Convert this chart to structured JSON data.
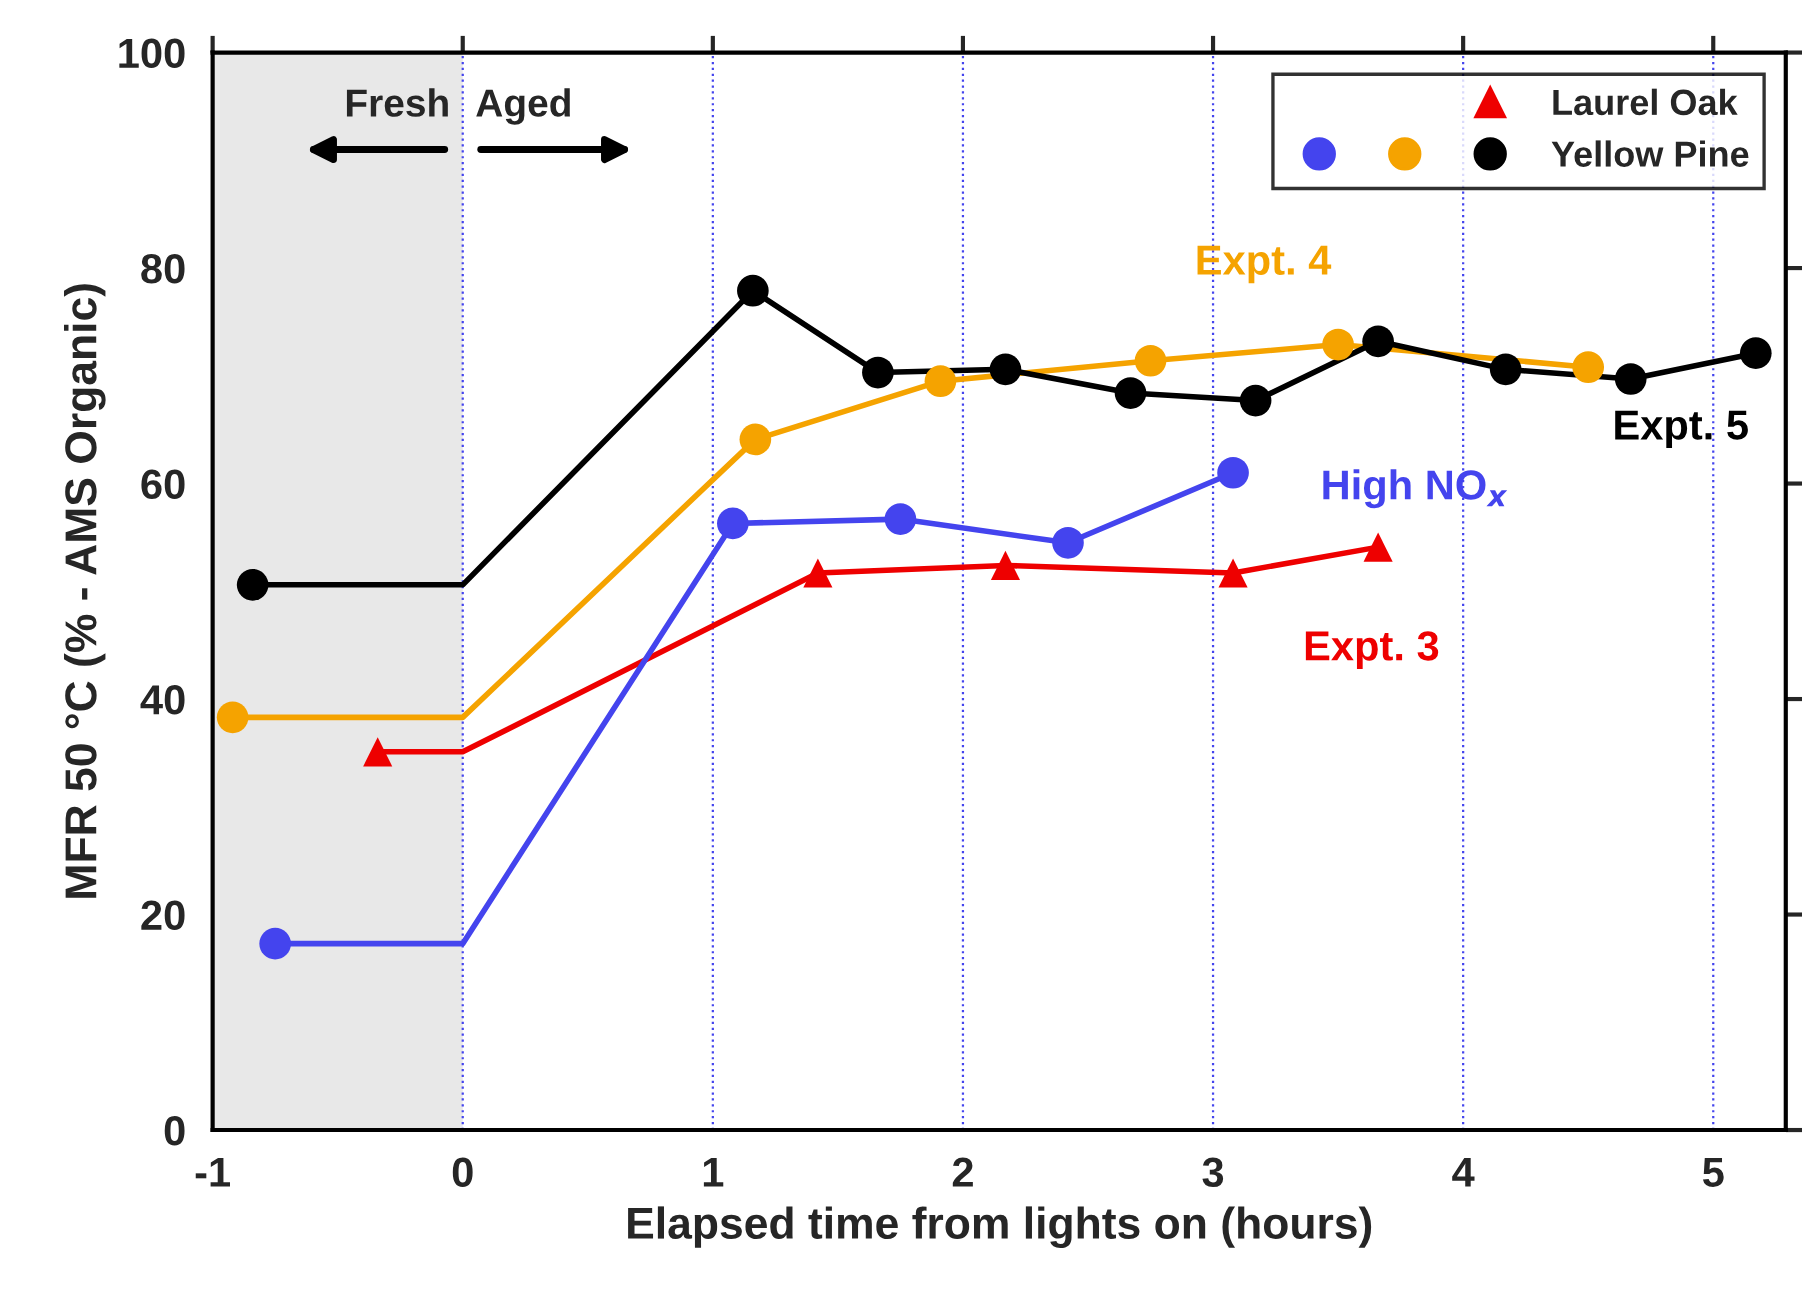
{
  "chart_data": {
    "type": "line",
    "xlabel": "Elapsed time from lights on (hours)",
    "ylabel": "MFR 50 °C (% - AMS Organic)",
    "xlim": [
      -1,
      5.29
    ],
    "xticks": [
      -1,
      0,
      1,
      2,
      3,
      4,
      5
    ],
    "ylim": [
      0,
      100
    ],
    "yticks": [
      0,
      20,
      40,
      60,
      80,
      100
    ],
    "grid": "x",
    "legend": "top right",
    "bands": [
      {
        "axis": "x",
        "from": -1,
        "to": 0,
        "color": "#e8e8e8"
      }
    ],
    "annotations": [
      "Fresh",
      "Aged",
      {
        "text": "Expt. 3",
        "x": 3.66,
        "y": 54.1
      },
      {
        "text": "High NO$_{x}$",
        "x": 3.08,
        "y": 61.0
      },
      {
        "text": "Expt. 4",
        "x": 3.5,
        "y": 72.9
      },
      {
        "text": "Expt. 5",
        "x": 5.17,
        "y": 72.1
      }
    ],
    "series": [
      {
        "marker": "none",
        "color": "#ee0000",
        "x": [
          -0.34,
          0,
          1.42,
          2.17,
          3.08,
          3.66
        ],
        "values": [
          35.1,
          35.1,
          51.7,
          52.4,
          51.7,
          54.1
        ]
      },
      {
        "marker": "none",
        "color": "#4444ee",
        "x": [
          -0.75,
          0,
          1.08,
          1.75,
          2.42,
          3.08
        ],
        "values": [
          17.3,
          17.3,
          56.3,
          56.7,
          54.5,
          61.0
        ]
      },
      {
        "marker": "none",
        "color": "#f5a300",
        "x": [
          -0.92,
          0,
          1.17,
          1.91,
          2.75,
          3.5,
          4.5
        ],
        "values": [
          38.3,
          38.3,
          64.1,
          69.5,
          71.4,
          72.9,
          70.8
        ]
      },
      {
        "marker": "none",
        "color": "#000000",
        "x": [
          -0.84,
          0,
          1.16,
          1.66,
          2.17,
          2.67,
          3.17,
          3.66,
          4.17,
          4.67,
          5.17
        ],
        "values": [
          50.6,
          50.6,
          77.9,
          70.3,
          70.6,
          68.4,
          67.7,
          73.2,
          70.6,
          69.7,
          72.1
        ]
      },
      {
        "type": "scatter",
        "marker": "triangle",
        "name": "Laurel Oak",
        "color": "#ee0000",
        "x": [
          -0.34,
          1.42,
          2.17,
          3.08,
          3.66
        ],
        "values": [
          35.1,
          51.7,
          52.4,
          51.7,
          54.1
        ]
      },
      {
        "type": "scatter",
        "marker": "circle",
        "color": "#4444ee",
        "x": [
          -0.75,
          1.08,
          1.75,
          2.42,
          3.08
        ],
        "values": [
          17.3,
          56.3,
          56.7,
          54.5,
          61.0
        ]
      },
      {
        "type": "scatter",
        "marker": "circle",
        "color": "#f5a300",
        "x": [
          -0.92,
          1.17,
          1.91,
          2.75,
          3.5,
          4.5
        ],
        "values": [
          38.3,
          64.1,
          69.5,
          71.4,
          72.9,
          70.8
        ]
      },
      {
        "type": "scatter",
        "marker": "circle",
        "name": "Yellow Pine",
        "color": "#000000",
        "x": [
          -0.84,
          1.16,
          1.66,
          2.17,
          2.67,
          3.17,
          3.66,
          4.17,
          4.67,
          5.17
        ],
        "values": [
          50.6,
          77.9,
          70.3,
          70.6,
          68.4,
          67.7,
          73.2,
          70.6,
          69.7,
          72.1
        ]
      }
    ]
  }
}
